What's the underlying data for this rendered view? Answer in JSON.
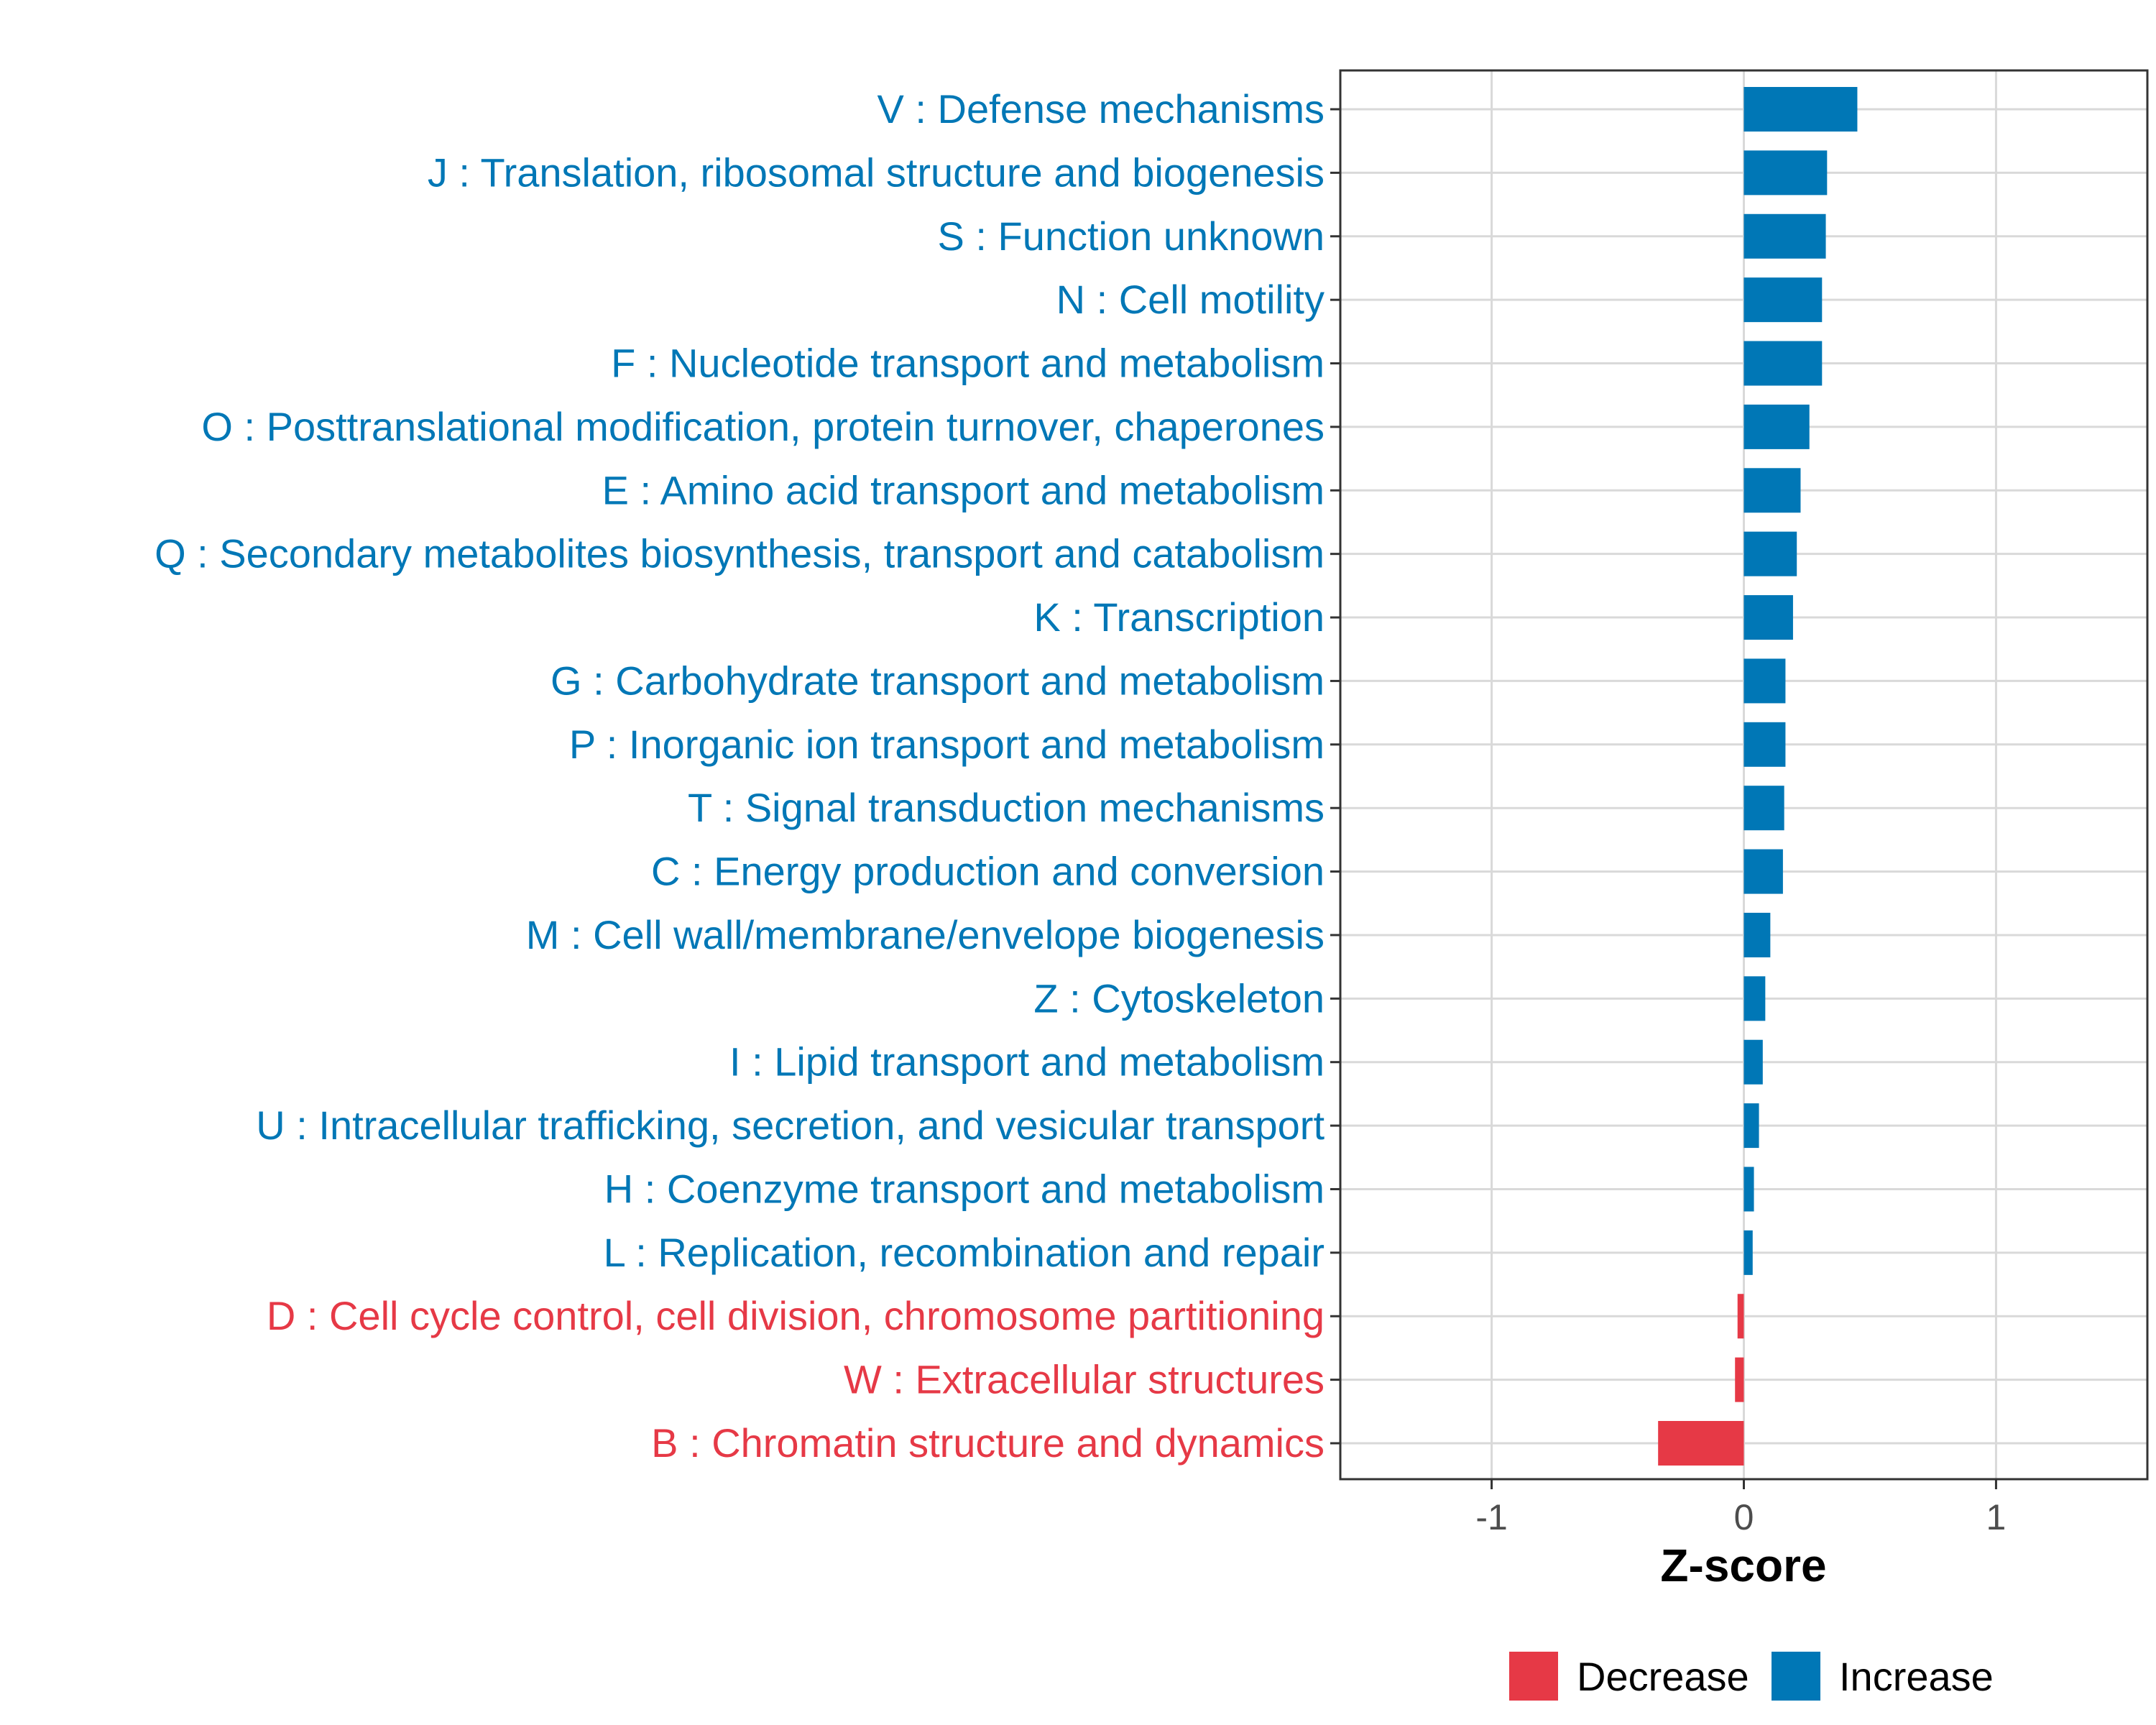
{
  "chart_data": {
    "type": "bar",
    "orientation": "horizontal",
    "title": "",
    "xlabel": "Z-score",
    "ylabel": "",
    "xlim": [
      -1.6,
      1.6
    ],
    "xticks": [
      -1,
      0,
      1
    ],
    "xtick_labels": [
      "-1",
      "0",
      "1"
    ],
    "grid": true,
    "legend": {
      "placement": "bottom",
      "entries": [
        {
          "name": "Decrease",
          "color": "#E63946"
        },
        {
          "name": "Increase",
          "color": "#0077B6"
        }
      ]
    },
    "categories": [
      "V : Defense mechanisms",
      "J : Translation, ribosomal structure and biogenesis",
      "S : Function unknown",
      "N : Cell motility",
      "F : Nucleotide transport and metabolism",
      "O : Posttranslational modification, protein turnover, chaperones",
      "E : Amino acid transport and metabolism",
      "Q : Secondary metabolites biosynthesis, transport and catabolism",
      "K : Transcription",
      "G : Carbohydrate transport and metabolism",
      "P : Inorganic ion transport and metabolism",
      "T : Signal transduction mechanisms",
      "C : Energy production and conversion",
      "M : Cell wall/membrane/envelope biogenesis",
      "Z : Cytoskeleton",
      "I : Lipid transport and metabolism",
      "U : Intracellular trafficking, secretion, and vesicular transport",
      "H : Coenzyme transport and metabolism",
      "L : Replication, recombination and repair",
      "D : Cell cycle control, cell division, chromosome partitioning",
      "W : Extracellular structures",
      "B : Chromatin structure and dynamics"
    ],
    "values": [
      0.45,
      0.33,
      0.325,
      0.31,
      0.31,
      0.26,
      0.225,
      0.21,
      0.195,
      0.165,
      0.165,
      0.16,
      0.155,
      0.105,
      0.085,
      0.075,
      0.06,
      0.04,
      0.035,
      -0.025,
      -0.035,
      -0.34
    ],
    "groups": [
      "Increase",
      "Increase",
      "Increase",
      "Increase",
      "Increase",
      "Increase",
      "Increase",
      "Increase",
      "Increase",
      "Increase",
      "Increase",
      "Increase",
      "Increase",
      "Increase",
      "Increase",
      "Increase",
      "Increase",
      "Increase",
      "Increase",
      "Decrease",
      "Decrease",
      "Decrease"
    ]
  }
}
